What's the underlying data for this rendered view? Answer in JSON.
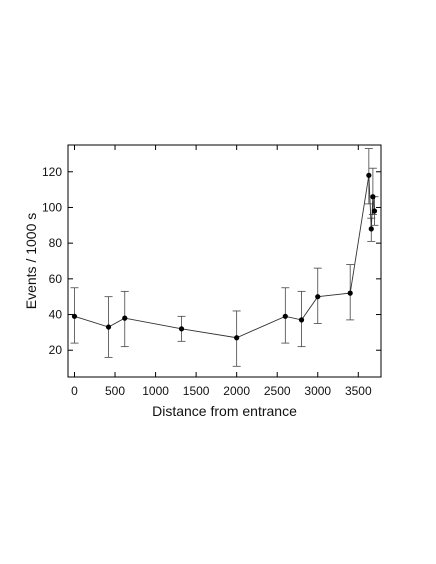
{
  "chart_data": {
    "type": "scatter",
    "title": "",
    "xlabel": "Distance from entrance",
    "ylabel": "Events / 1000 s",
    "xlim": [
      -80,
      3780
    ],
    "ylim": [
      5,
      135
    ],
    "xticks": [
      0,
      500,
      1000,
      1500,
      2000,
      2500,
      3000,
      3500
    ],
    "yticks": [
      20,
      40,
      60,
      80,
      100,
      120
    ],
    "grid": false,
    "legend": "none",
    "connect_points": true,
    "colors": {
      "marker": "#000000",
      "line": "#333333",
      "error_bar": "#444444",
      "axis": "#000000"
    },
    "points": [
      {
        "x": 0,
        "y": 39,
        "low": 24,
        "high": 55
      },
      {
        "x": 420,
        "y": 33,
        "low": 16,
        "high": 50
      },
      {
        "x": 620,
        "y": 38,
        "low": 22,
        "high": 53
      },
      {
        "x": 1320,
        "y": 32,
        "low": 25,
        "high": 39
      },
      {
        "x": 2000,
        "y": 27,
        "low": 11,
        "high": 42
      },
      {
        "x": 2600,
        "y": 39,
        "low": 24,
        "high": 55
      },
      {
        "x": 2800,
        "y": 37,
        "low": 22,
        "high": 53
      },
      {
        "x": 3000,
        "y": 50,
        "low": 35,
        "high": 66
      },
      {
        "x": 3400,
        "y": 52,
        "low": 37,
        "high": 68
      },
      {
        "x": 3630,
        "y": 118,
        "low": 102,
        "high": 133
      },
      {
        "x": 3660,
        "y": 88,
        "low": 81,
        "high": 94
      },
      {
        "x": 3680,
        "y": 106,
        "low": 96,
        "high": 122
      },
      {
        "x": 3700,
        "y": 98,
        "low": 90,
        "high": 106
      }
    ]
  }
}
